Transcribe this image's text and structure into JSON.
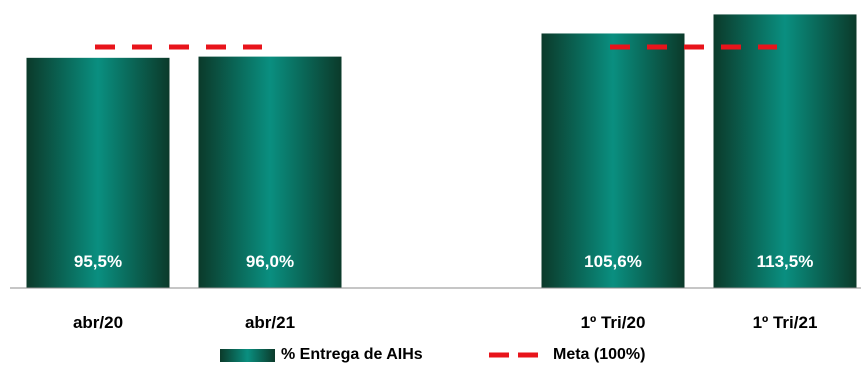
{
  "chart_data": {
    "type": "bar",
    "categories": [
      "abr/20",
      "abr/21",
      "1º Tri/20",
      "1º Tri/21"
    ],
    "series": [
      {
        "name": "% Entrega de AIHs",
        "values": [
          95.5,
          96.0,
          105.6,
          113.5
        ],
        "data_labels": [
          "95,5%",
          "96,0%",
          "105,6%",
          "113,5%"
        ]
      },
      {
        "name": "Meta (100%)",
        "values": [
          100,
          100,
          100,
          100
        ],
        "style": "dashed-line"
      }
    ],
    "groups": [
      [
        "abr/20",
        "abr/21"
      ],
      [
        "1º Tri/20",
        "1º Tri/21"
      ]
    ],
    "title": "",
    "xlabel": "",
    "ylabel": "",
    "ylim": [
      0,
      117
    ],
    "grid": false,
    "legend_position": "bottom",
    "colors": {
      "bar_edge": "#0b3a2a",
      "bar_center": "#0a8f80",
      "meta_line": "#e8141b",
      "data_label": "#ffffff",
      "axis": "#8c8c8c"
    }
  },
  "legend": {
    "bars_label": "% Entrega de AIHs",
    "meta_label": "Meta (100%)"
  }
}
